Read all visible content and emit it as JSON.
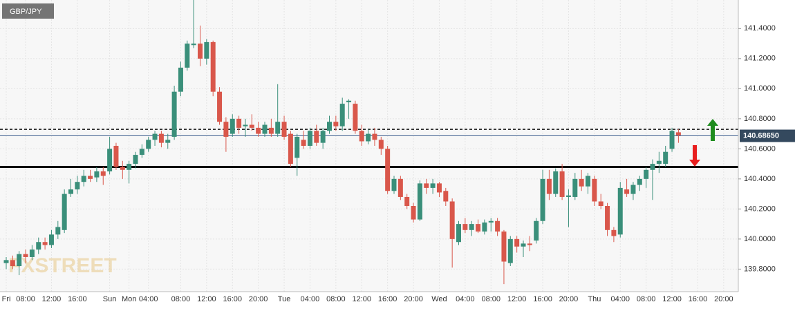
{
  "chart_data": {
    "type": "candlestick",
    "symbol": "GBP/JPY",
    "watermark": "FXSTREET",
    "ylim": [
      139.65,
      141.59
    ],
    "yticks": [
      {
        "value": 139.8,
        "label": "139.8000"
      },
      {
        "value": 140.0,
        "label": "140.0000"
      },
      {
        "value": 140.2,
        "label": "140.2000"
      },
      {
        "value": 140.4,
        "label": "140.4000"
      },
      {
        "value": 140.6,
        "label": "140.6000"
      },
      {
        "value": 140.8,
        "label": "140.8000"
      },
      {
        "value": 141.0,
        "label": "141.0000"
      },
      {
        "value": 141.2,
        "label": "141.2000"
      },
      {
        "value": 141.4,
        "label": "141.4000"
      }
    ],
    "grid": true,
    "up_color": "#3a8f7a",
    "down_color": "#d9574b",
    "current_price": {
      "value": 140.6865,
      "label": "140.68650"
    },
    "resistance": 140.73,
    "support": 140.48,
    "categories": [
      "Fri",
      null,
      null,
      "08:00",
      null,
      null,
      null,
      "12:00",
      null,
      null,
      null,
      "16:00",
      null,
      null,
      null,
      null,
      "Sun",
      null,
      null,
      "Mon",
      null,
      null,
      "04:00",
      null,
      null,
      null,
      null,
      "08:00",
      null,
      null,
      null,
      "12:00",
      null,
      null,
      null,
      "16:00",
      null,
      null,
      null,
      "20:00",
      null,
      null,
      null,
      "Tue",
      null,
      null,
      null,
      "04:00",
      null,
      null,
      null,
      "08:00",
      null,
      null,
      null,
      "12:00",
      null,
      null,
      null,
      "16:00",
      null,
      null,
      null,
      "20:00",
      null,
      null,
      null,
      "Wed",
      null,
      null,
      null,
      "04:00",
      null,
      null,
      null,
      "08:00",
      null,
      null,
      null,
      "12:00",
      null,
      null,
      null,
      "16:00",
      null,
      null,
      null,
      "20:00",
      null,
      null,
      null,
      "Thu",
      null,
      null,
      null,
      "04:00",
      null,
      null,
      null,
      "08:00",
      null,
      null,
      null,
      "12:00",
      null,
      null,
      null,
      "16:00",
      null,
      null,
      null,
      "20:00"
    ],
    "open": [
      139.84,
      139.86,
      139.82,
      139.9,
      139.88,
      139.93,
      139.98,
      139.96,
      140.03,
      140.06,
      140.3,
      140.33,
      140.38,
      140.42,
      140.41,
      140.45,
      140.45,
      140.62,
      140.48,
      140.46,
      140.5,
      140.56,
      140.6,
      140.66,
      140.7,
      140.64,
      140.68,
      140.98,
      141.14,
      141.29,
      141.3,
      141.2,
      141.31,
      140.98,
      140.78,
      140.7,
      140.8,
      140.75,
      140.76,
      140.74,
      140.7,
      140.74,
      140.7,
      140.78,
      140.7,
      140.54,
      140.66,
      140.62,
      140.72,
      140.64,
      140.72,
      140.78,
      140.75,
      140.91,
      140.9,
      140.72,
      140.65,
      140.7,
      140.66,
      140.6,
      140.32,
      140.4,
      140.28,
      140.22,
      140.13,
      140.37,
      140.34,
      140.37,
      140.32,
      140.25,
      139.98,
      140.1,
      140.06,
      140.1,
      140.05,
      140.11,
      140.12,
      140.05,
      139.84,
      140.0,
      139.95,
      139.97,
      139.99,
      140.12,
      140.4,
      140.3,
      140.45,
      140.28,
      140.28,
      140.4,
      140.35,
      140.4,
      140.25,
      140.22,
      140.06,
      140.03,
      140.33,
      140.3,
      140.36,
      140.4,
      140.46,
      140.5,
      140.5,
      140.6,
      140.71,
      null,
      null,
      null,
      null,
      null,
      null,
      null
    ],
    "high": [
      139.88,
      139.89,
      139.92,
      139.93,
      139.96,
      140.01,
      140.01,
      140.06,
      140.12,
      140.33,
      140.4,
      140.42,
      140.46,
      140.46,
      140.48,
      140.48,
      140.68,
      140.64,
      140.52,
      140.52,
      140.58,
      140.63,
      140.68,
      140.72,
      140.72,
      140.7,
      141.02,
      141.18,
      141.32,
      141.59,
      141.42,
      141.33,
      141.32,
      141.01,
      140.81,
      140.83,
      140.82,
      140.8,
      140.83,
      140.78,
      140.78,
      140.8,
      141.03,
      140.82,
      140.72,
      140.7,
      140.72,
      140.74,
      140.76,
      140.74,
      140.82,
      140.82,
      140.94,
      140.93,
      140.92,
      140.76,
      140.73,
      140.74,
      140.68,
      140.62,
      140.42,
      140.42,
      140.3,
      140.24,
      140.39,
      140.4,
      140.4,
      140.38,
      140.34,
      140.27,
      140.12,
      140.14,
      140.12,
      140.13,
      140.13,
      140.14,
      140.14,
      140.06,
      140.02,
      140.02,
      139.99,
      140.02,
      140.14,
      140.46,
      140.46,
      140.47,
      140.5,
      140.33,
      140.44,
      140.46,
      140.44,
      140.42,
      140.3,
      140.24,
      140.08,
      140.38,
      140.4,
      140.38,
      140.42,
      140.48,
      140.53,
      140.58,
      140.62,
      140.74,
      140.73,
      null,
      null,
      null,
      null,
      null,
      null,
      null
    ],
    "low": [
      139.8,
      139.8,
      139.76,
      139.84,
      139.86,
      139.9,
      139.93,
      139.94,
      140.0,
      140.04,
      140.28,
      140.3,
      140.35,
      140.38,
      140.38,
      140.36,
      140.43,
      140.46,
      140.4,
      140.37,
      140.47,
      140.54,
      140.58,
      140.62,
      140.61,
      140.6,
      140.66,
      140.95,
      141.12,
      141.27,
      141.15,
      141.16,
      140.95,
      140.76,
      140.58,
      140.68,
      140.7,
      140.68,
      140.72,
      140.68,
      140.68,
      140.68,
      140.68,
      140.66,
      140.48,
      140.42,
      140.6,
      140.6,
      140.62,
      140.6,
      140.7,
      140.72,
      140.72,
      140.8,
      140.7,
      140.62,
      140.63,
      140.62,
      140.56,
      140.3,
      140.3,
      140.26,
      140.2,
      140.11,
      140.12,
      140.3,
      140.3,
      140.28,
      140.22,
      139.81,
      139.96,
      140.04,
      140.02,
      140.04,
      140.03,
      140.05,
      140.02,
      139.7,
      139.82,
      139.91,
      139.88,
      139.92,
      139.97,
      140.1,
      140.26,
      140.28,
      140.26,
      140.08,
      140.26,
      140.32,
      140.3,
      140.22,
      140.2,
      140.02,
      139.98,
      140.01,
      140.28,
      140.26,
      140.32,
      140.34,
      140.26,
      140.44,
      140.48,
      140.58,
      140.64,
      null,
      null,
      null,
      null,
      null,
      null,
      null
    ],
    "close": [
      139.86,
      139.82,
      139.9,
      139.88,
      139.93,
      139.98,
      139.96,
      140.03,
      140.08,
      140.3,
      140.33,
      140.38,
      140.42,
      140.4,
      140.45,
      140.42,
      140.6,
      140.48,
      140.46,
      140.5,
      140.56,
      140.6,
      140.66,
      140.7,
      140.64,
      140.66,
      140.98,
      141.14,
      141.3,
      141.3,
      141.2,
      141.31,
      140.98,
      140.78,
      140.68,
      140.8,
      140.74,
      140.76,
      140.74,
      140.7,
      140.76,
      140.7,
      140.78,
      140.68,
      140.5,
      140.68,
      140.62,
      140.72,
      140.64,
      140.72,
      140.78,
      140.75,
      140.9,
      140.92,
      140.72,
      140.65,
      140.7,
      140.66,
      140.6,
      140.32,
      140.4,
      140.28,
      140.22,
      140.13,
      140.37,
      140.34,
      140.37,
      140.31,
      140.25,
      140.0,
      140.1,
      140.06,
      140.1,
      140.05,
      140.11,
      140.12,
      140.05,
      139.85,
      140.0,
      139.95,
      139.97,
      139.96,
      140.12,
      140.4,
      140.3,
      140.45,
      140.28,
      140.29,
      140.4,
      140.35,
      140.42,
      140.25,
      140.22,
      140.06,
      140.02,
      140.34,
      140.3,
      140.36,
      140.4,
      140.46,
      140.5,
      140.52,
      140.58,
      140.72,
      140.69,
      null,
      null,
      null,
      null,
      null,
      null,
      null
    ]
  }
}
